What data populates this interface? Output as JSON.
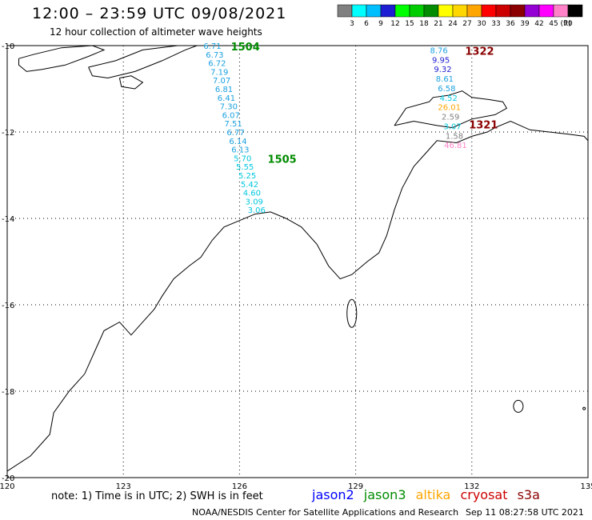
{
  "header": {
    "title": "12:00 – 23:59 UTC 09/08/2021",
    "subtitle": "12 hour collection of altimeter wave heights"
  },
  "colorbar": {
    "colors": [
      "#808080",
      "#00ffff",
      "#00bfff",
      "#1e1ed2",
      "#00ff00",
      "#00cd00",
      "#008b00",
      "#ffff00",
      "#ffd700",
      "#ffa500",
      "#ff0000",
      "#cd0000",
      "#8b0000",
      "#9400d3",
      "#ff00ff",
      "#ff82c8",
      "#000000"
    ],
    "labels": [
      "3",
      "6",
      "9",
      "12",
      "15",
      "18",
      "21",
      "24",
      "27",
      "30",
      "33",
      "36",
      "39",
      "42",
      "45",
      "70"
    ],
    "unit": "(ft)"
  },
  "map": {
    "lon_range": [
      120,
      135
    ],
    "lat_range": [
      -20,
      -10
    ],
    "lon_ticks": [
      "120",
      "123",
      "126",
      "129",
      "132",
      "135"
    ],
    "lat_ticks": [
      "-10",
      "-12",
      "-14",
      "-16",
      "-18",
      "-20"
    ],
    "grid": true,
    "passes": [
      {
        "name": "1504",
        "color": "#008b00",
        "lon": 126.15,
        "lat": -10.02
      },
      {
        "name": "1505",
        "color": "#008b00",
        "lon": 127.1,
        "lat": -12.62
      },
      {
        "name": "1322",
        "color": "#8b0000",
        "lon": 132.2,
        "lat": -10.12
      },
      {
        "name": "1321",
        "color": "#8b0000",
        "lon": 132.3,
        "lat": -11.82
      }
    ],
    "swh_track_a": [
      {
        "v": "6.71",
        "lon": 125.3,
        "lat": -10.0,
        "color": "#1aa0e0"
      },
      {
        "v": "6.73",
        "lon": 125.36,
        "lat": -10.2,
        "color": "#1aa0e0"
      },
      {
        "v": "6.72",
        "lon": 125.42,
        "lat": -10.4,
        "color": "#1aa0e0"
      },
      {
        "v": "7.19",
        "lon": 125.48,
        "lat": -10.6,
        "color": "#1aa0e0"
      },
      {
        "v": "7.07",
        "lon": 125.54,
        "lat": -10.8,
        "color": "#1aa0e0"
      },
      {
        "v": "6.81",
        "lon": 125.6,
        "lat": -11.0,
        "color": "#1aa0e0"
      },
      {
        "v": "6.41",
        "lon": 125.66,
        "lat": -11.2,
        "color": "#1aa0e0"
      },
      {
        "v": "7.30",
        "lon": 125.72,
        "lat": -11.4,
        "color": "#1aa0e0"
      },
      {
        "v": "6.07",
        "lon": 125.78,
        "lat": -11.6,
        "color": "#1aa0e0"
      },
      {
        "v": "7.51",
        "lon": 125.84,
        "lat": -11.8,
        "color": "#1aa0e0"
      },
      {
        "v": "6.77",
        "lon": 125.9,
        "lat": -12.0,
        "color": "#1aa0e0"
      },
      {
        "v": "6.14",
        "lon": 125.96,
        "lat": -12.2,
        "color": "#1aa0e0"
      },
      {
        "v": "6.13",
        "lon": 126.02,
        "lat": -12.4,
        "color": "#1aa0e0"
      },
      {
        "v": "5.70",
        "lon": 126.08,
        "lat": -12.6,
        "color": "#00c8e0"
      },
      {
        "v": "5.55",
        "lon": 126.14,
        "lat": -12.8,
        "color": "#00c8e0"
      },
      {
        "v": "5.25",
        "lon": 126.2,
        "lat": -13.0,
        "color": "#00c8e0"
      },
      {
        "v": "5.42",
        "lon": 126.26,
        "lat": -13.2,
        "color": "#00c8e0"
      },
      {
        "v": "4.60",
        "lon": 126.32,
        "lat": -13.4,
        "color": "#00c8e0"
      },
      {
        "v": "3.09",
        "lon": 126.38,
        "lat": -13.6,
        "color": "#00c8e0"
      },
      {
        "v": "3.06",
        "lon": 126.44,
        "lat": -13.8,
        "color": "#00c8e0"
      }
    ],
    "swh_track_b": [
      {
        "v": "8.76",
        "lon": 131.15,
        "lat": -10.1,
        "color": "#1aa0e0"
      },
      {
        "v": "9.95",
        "lon": 131.2,
        "lat": -10.32,
        "color": "#1e1ed2"
      },
      {
        "v": "9.32",
        "lon": 131.25,
        "lat": -10.54,
        "color": "#1e1ed2"
      },
      {
        "v": "8.61",
        "lon": 131.3,
        "lat": -10.76,
        "color": "#1aa0e0"
      },
      {
        "v": "6.58",
        "lon": 131.35,
        "lat": -10.98,
        "color": "#1aa0e0"
      },
      {
        "v": "4.52",
        "lon": 131.4,
        "lat": -11.2,
        "color": "#00c8e0"
      },
      {
        "v": "26.01",
        "lon": 131.42,
        "lat": -11.42,
        "color": "#ffa500"
      },
      {
        "v": "2.59",
        "lon": 131.45,
        "lat": -11.64,
        "color": "#808080"
      },
      {
        "v": "3.07",
        "lon": 131.5,
        "lat": -11.86,
        "color": "#00c8e0"
      },
      {
        "v": "1.58",
        "lon": 131.55,
        "lat": -12.08,
        "color": "#808080"
      },
      {
        "v": "46.81",
        "lon": 131.58,
        "lat": -12.3,
        "color": "#ff82c8"
      }
    ]
  },
  "footer": {
    "note": "note: 1) Time is in UTC; 2) SWH is in feet",
    "satellites": [
      {
        "name": "jason2",
        "color": "#0000ff"
      },
      {
        "name": "jason3",
        "color": "#008b00"
      },
      {
        "name": "altika",
        "color": "#ffa500"
      },
      {
        "name": "cryosat",
        "color": "#cd0000"
      },
      {
        "name": "s3a",
        "color": "#8b0000"
      }
    ],
    "credit": "NOAA/NESDIS Center for Satellite Applications and Research",
    "timestamp": "Sep 11 08:27:58 UTC 2021"
  }
}
